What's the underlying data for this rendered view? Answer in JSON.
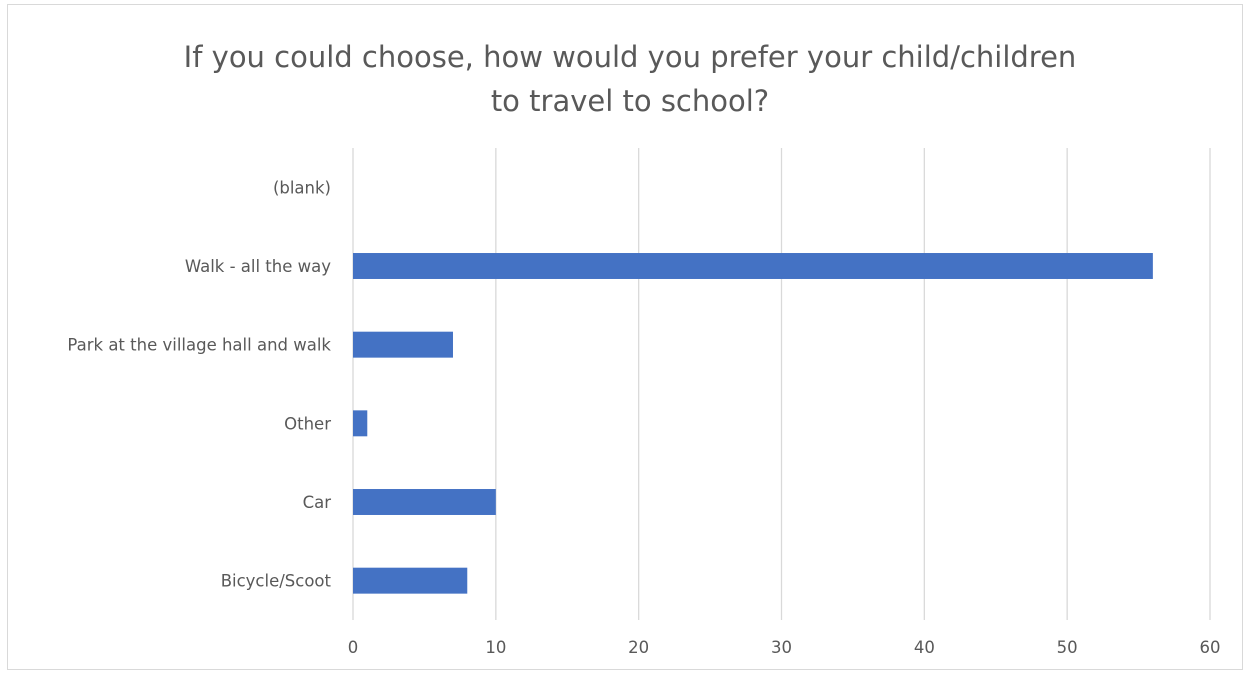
{
  "chart_data": {
    "type": "bar",
    "orientation": "horizontal",
    "title_lines": [
      "If you could choose, how would you prefer your child/children",
      "to travel to school?"
    ],
    "categories": [
      "(blank)",
      "Walk - all the way",
      "Park at the village hall and walk",
      "Other",
      "Car",
      "Bicycle/Scoot"
    ],
    "values": [
      0,
      56,
      7,
      1,
      10,
      8
    ],
    "xlim": [
      0,
      60
    ],
    "xticks": [
      0,
      10,
      20,
      30,
      40,
      50,
      60
    ],
    "grid": true,
    "legend": "none",
    "bar_color": "#4472c4",
    "grid_color": "#d9d9d9"
  }
}
